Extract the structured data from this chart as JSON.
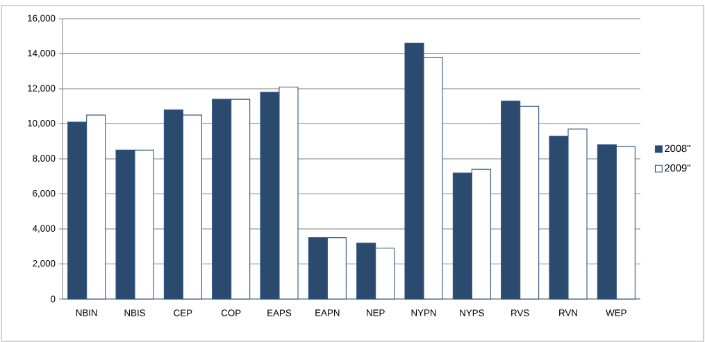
{
  "chart_data": {
    "type": "bar",
    "categories": [
      "NBIN",
      "NBIS",
      "CEP",
      "COP",
      "EAPS",
      "EAPN",
      "NEP",
      "NYPN",
      "NYPS",
      "RVS",
      "RVN",
      "WEP"
    ],
    "series": [
      {
        "name": "2008\"",
        "color": "#2a4a6e",
        "values": [
          10100,
          8500,
          10800,
          11400,
          11800,
          3500,
          3200,
          14600,
          7200,
          11300,
          9300,
          8800
        ]
      },
      {
        "name": "2009\"",
        "color": "#ffffff",
        "values": [
          10500,
          8500,
          10500,
          11400,
          12100,
          3500,
          2900,
          13800,
          7400,
          11000,
          9700,
          8700
        ]
      }
    ],
    "ylim": [
      0,
      16000
    ],
    "yticks": [
      {
        "value": 0,
        "label": "0"
      },
      {
        "value": 2000,
        "label": "2,000"
      },
      {
        "value": 4000,
        "label": "4,000"
      },
      {
        "value": 6000,
        "label": "6,000"
      },
      {
        "value": 8000,
        "label": "8,000"
      },
      {
        "value": 10000,
        "label": "10,000"
      },
      {
        "value": 12000,
        "label": "12,000"
      },
      {
        "value": 14000,
        "label": "14,000"
      },
      {
        "value": 16000,
        "label": "16,000"
      }
    ],
    "grid": "y",
    "legend": "right"
  }
}
